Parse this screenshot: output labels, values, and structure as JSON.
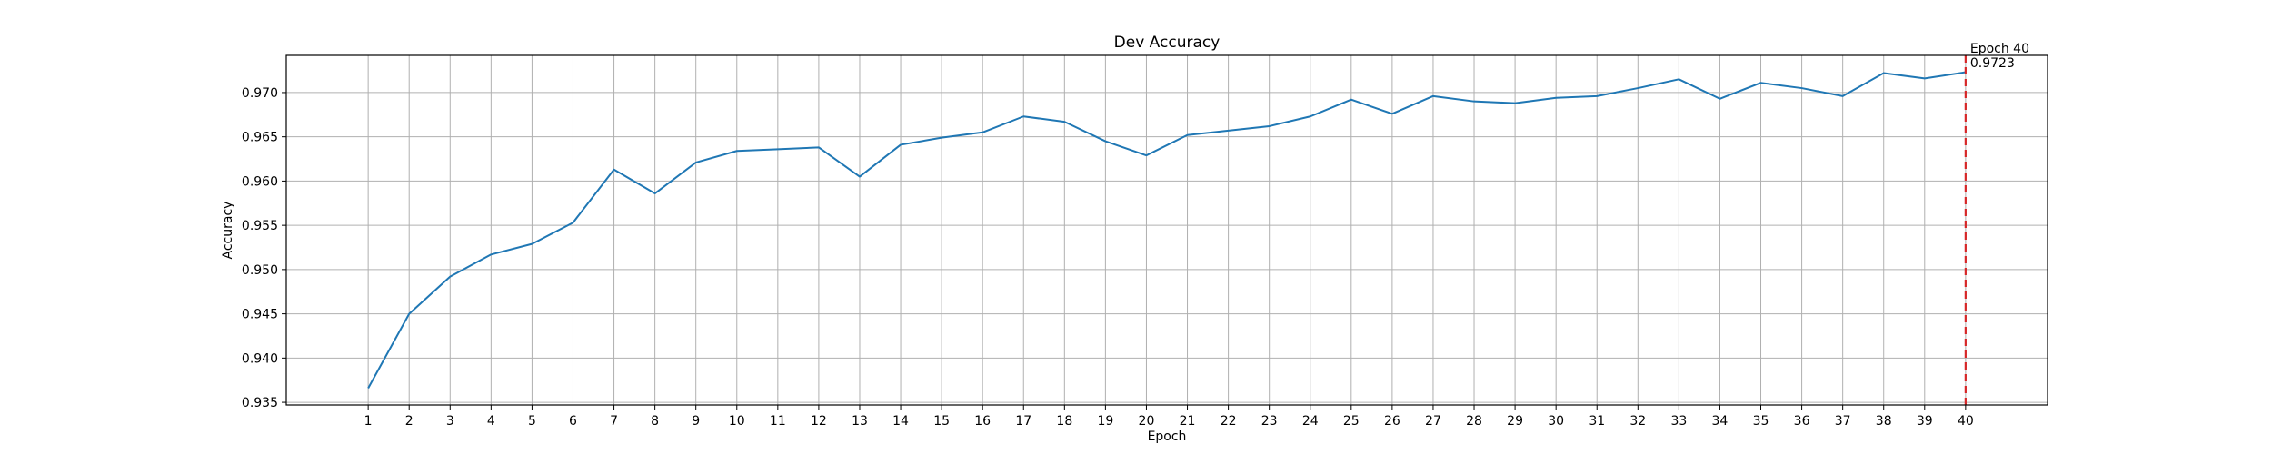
{
  "chart_data": {
    "type": "line",
    "title": "Dev Accuracy",
    "xlabel": "Epoch",
    "ylabel": "Accuracy",
    "x": [
      1,
      2,
      3,
      4,
      5,
      6,
      7,
      8,
      9,
      10,
      11,
      12,
      13,
      14,
      15,
      16,
      17,
      18,
      19,
      20,
      21,
      22,
      23,
      24,
      25,
      26,
      27,
      28,
      29,
      30,
      31,
      32,
      33,
      34,
      35,
      36,
      37,
      38,
      39,
      40
    ],
    "series": [
      {
        "values": [
          0.9366,
          0.945,
          0.9492,
          0.9517,
          0.9529,
          0.9553,
          0.9613,
          0.9586,
          0.9621,
          0.9634,
          0.9636,
          0.9638,
          0.9605,
          0.9641,
          0.9649,
          0.9655,
          0.9673,
          0.9667,
          0.9645,
          0.9629,
          0.9652,
          0.9657,
          0.9662,
          0.9673,
          0.9692,
          0.9676,
          0.9696,
          0.969,
          0.9688,
          0.9694,
          0.9696,
          0.9705,
          0.9715,
          0.9693,
          0.9711,
          0.9705,
          0.9696,
          0.9722,
          0.9716,
          0.9723
        ],
        "color": "#1f77b4"
      }
    ],
    "xlim": [
      -1,
      42
    ],
    "ylim": [
      0.9347,
      0.9742
    ],
    "yticks": [
      0.935,
      0.94,
      0.945,
      0.95,
      0.955,
      0.96,
      0.965,
      0.97
    ],
    "ytick_labels": [
      "0.935",
      "0.940",
      "0.945",
      "0.950",
      "0.955",
      "0.960",
      "0.965",
      "0.970"
    ],
    "grid": true,
    "marker_line": {
      "x": 40,
      "color": "#d62728",
      "style": "dashed",
      "annotation_line1": "Epoch 40",
      "annotation_line2": "0.9723"
    }
  }
}
